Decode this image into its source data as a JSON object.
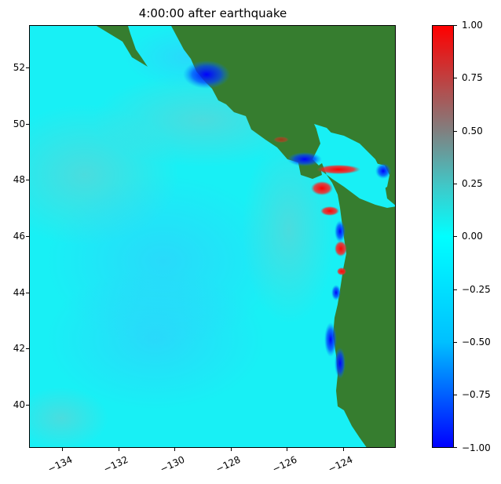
{
  "title": "4:00:00 after earthquake",
  "map": {
    "land_color": "#367d2f",
    "ocean_base_color": "#18f0f5",
    "x_ticks": [
      "−134",
      "−132",
      "−130",
      "−128",
      "−126",
      "−124"
    ],
    "y_ticks": [
      "52",
      "50",
      "48",
      "46",
      "44",
      "42",
      "40"
    ],
    "xlim": [
      -135.1,
      -122.0
    ],
    "ylim": [
      38.5,
      53.5
    ]
  },
  "colorbar": {
    "labels": [
      "1.00",
      "0.75",
      "0.50",
      "0.25",
      "0.00",
      "−0.25",
      "−0.50",
      "−0.75",
      "−1.00"
    ],
    "range": [
      -1.0,
      1.0
    ],
    "colors": {
      "low": "#0000ff",
      "mid_low": "#00c0ff",
      "zero": "#00ffff",
      "mid_high": "#808080",
      "high": "#ff0000"
    }
  }
}
